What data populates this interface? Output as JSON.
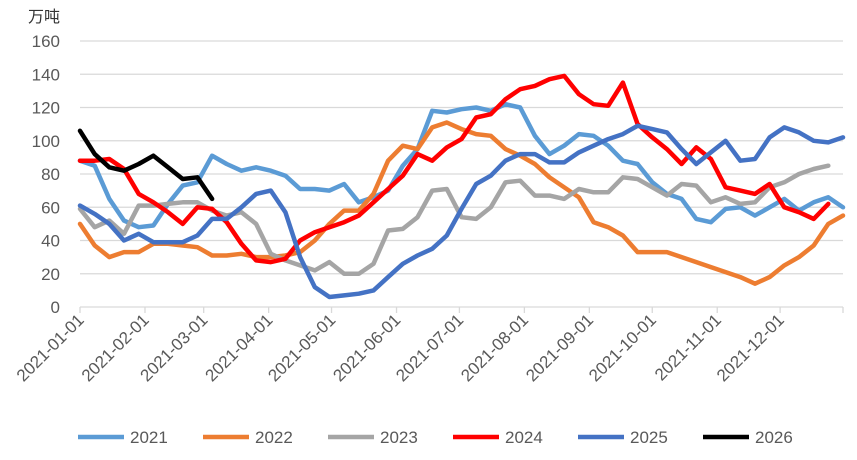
{
  "chart_data": {
    "type": "line",
    "title": "",
    "ylabel": "万吨",
    "xlabel": "",
    "ylim": [
      0,
      160
    ],
    "yticks": [
      0,
      20,
      40,
      60,
      80,
      100,
      120,
      140,
      160
    ],
    "grid": true,
    "legend_position": "bottom",
    "x_unit": "week index (weekly data, week 0 = 2021-01-01)",
    "xlim_days": [
      0,
      364
    ],
    "xticks": [
      {
        "day": 0,
        "label": "2021-01-01"
      },
      {
        "day": 31,
        "label": "2021-02-01"
      },
      {
        "day": 59,
        "label": "2021-03-01"
      },
      {
        "day": 90,
        "label": "2021-04-01"
      },
      {
        "day": 120,
        "label": "2021-05-01"
      },
      {
        "day": 151,
        "label": "2021-06-01"
      },
      {
        "day": 181,
        "label": "2021-07-01"
      },
      {
        "day": 212,
        "label": "2021-08-01"
      },
      {
        "day": 243,
        "label": "2021-09-01"
      },
      {
        "day": 273,
        "label": "2021-10-01"
      },
      {
        "day": 304,
        "label": "2021-11-01"
      },
      {
        "day": 334,
        "label": "2021-12-01"
      }
    ],
    "series": [
      {
        "name": "2021",
        "color": "#5B9BD5",
        "values": [
          88,
          85,
          65,
          52,
          48,
          49,
          62,
          73,
          75,
          91,
          86,
          82,
          84,
          82,
          79,
          71,
          71,
          70,
          74,
          63,
          66,
          70,
          85,
          95,
          118,
          117,
          119,
          120,
          118,
          122,
          120,
          103,
          92,
          97,
          104,
          103,
          97,
          88,
          86,
          75,
          68,
          65,
          53,
          51,
          59,
          60,
          55,
          60,
          65,
          58,
          63,
          66,
          60
        ]
      },
      {
        "name": "2022",
        "color": "#ED7D31",
        "values": [
          50,
          37,
          30,
          33,
          33,
          38,
          38,
          37,
          36,
          31,
          31,
          32,
          30,
          30,
          31,
          33,
          40,
          50,
          58,
          58,
          68,
          88,
          97,
          95,
          108,
          111,
          107,
          104,
          103,
          95,
          91,
          86,
          78,
          72,
          66,
          51,
          48,
          43,
          33,
          33,
          33,
          30,
          27,
          24,
          21,
          18,
          14,
          18,
          25,
          30,
          37,
          50,
          55
        ]
      },
      {
        "name": "2023",
        "color": "#A5A5A5",
        "values": [
          59,
          48,
          52,
          44,
          61,
          61,
          62,
          63,
          63,
          58,
          55,
          57,
          50,
          32,
          28,
          25,
          22,
          27,
          20,
          20,
          26,
          46,
          47,
          54,
          70,
          71,
          54,
          53,
          60,
          75,
          76,
          67,
          67,
          65,
          71,
          69,
          69,
          78,
          77,
          72,
          67,
          74,
          73,
          63,
          66,
          62,
          63,
          72,
          75,
          80,
          83,
          85
        ]
      },
      {
        "name": "2024",
        "color": "#FF0000",
        "values": [
          88,
          88,
          89,
          83,
          68,
          63,
          57,
          50,
          60,
          59,
          51,
          38,
          28,
          27,
          29,
          40,
          45,
          48,
          51,
          55,
          63,
          71,
          79,
          92,
          88,
          96,
          101,
          114,
          116,
          125,
          131,
          133,
          137,
          139,
          128,
          122,
          121,
          135,
          110,
          102,
          95,
          86,
          96,
          89,
          72,
          70,
          68,
          74,
          60,
          57,
          53,
          62
        ]
      },
      {
        "name": "2025",
        "color": "#4472C4",
        "values": [
          61,
          56,
          50,
          40,
          44,
          39,
          39,
          39,
          43,
          53,
          53,
          60,
          68,
          70,
          57,
          30,
          12,
          6,
          7,
          8,
          10,
          18,
          26,
          31,
          35,
          43,
          59,
          74,
          79,
          88,
          92,
          92,
          87,
          87,
          93,
          97,
          101,
          104,
          109,
          107,
          105,
          95,
          86,
          93,
          100,
          88,
          89,
          102,
          108,
          105,
          100,
          99,
          102
        ]
      },
      {
        "name": "2026",
        "color": "#000000",
        "values": [
          106,
          92,
          84,
          82,
          86,
          91,
          84,
          77,
          78,
          65
        ]
      }
    ]
  }
}
